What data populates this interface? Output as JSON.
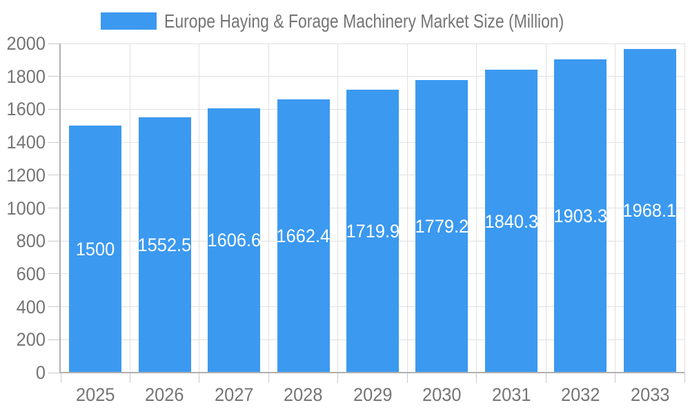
{
  "legend": {
    "label": "Europe Haying & Forage Machinery Market Size (Million)"
  },
  "chart_data": {
    "type": "bar",
    "title": "Europe Haying & Forage Machinery Market Size (Million)",
    "legend_position": "top",
    "categories": [
      "2025",
      "2026",
      "2027",
      "2028",
      "2029",
      "2030",
      "2031",
      "2032",
      "2033"
    ],
    "values": [
      1500,
      1552.5,
      1606.6,
      1662.4,
      1719.9,
      1779.2,
      1840.3,
      1903.3,
      1968.1
    ],
    "bar_value_labels": [
      "1500",
      "1552.5",
      "1606.6",
      "1662.4",
      "1719.9",
      "1779.2",
      "1840.3",
      "1903.3",
      "1968.1"
    ],
    "xlabel": "",
    "ylabel": "",
    "ylim": [
      0,
      2000
    ],
    "ytick_step": 200,
    "ytick_labels": [
      "0",
      "200",
      "400",
      "600",
      "800",
      "1000",
      "1200",
      "1400",
      "1600",
      "1800",
      "2000"
    ],
    "grid": true,
    "colors": {
      "bar": "#3b99f0",
      "axis_text": "#757575",
      "bar_label_text": "#ffffff",
      "grid_line": "#e0e0e0",
      "axis_line": "#b0b0b0",
      "tick": "#c9c9c9",
      "background": "#ffffff"
    }
  }
}
